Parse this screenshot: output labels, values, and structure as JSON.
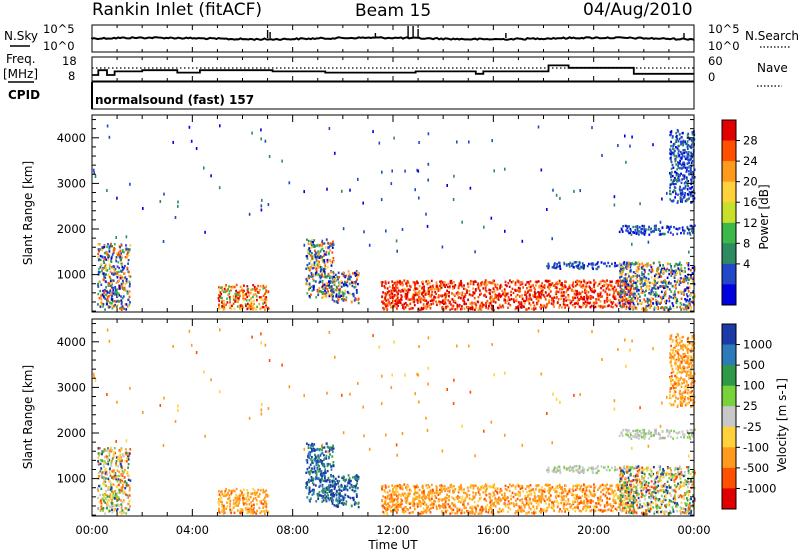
{
  "header": {
    "title": "Rankin Inlet (fitACF)",
    "beam": "Beam 15",
    "date": "04/Aug/2010"
  },
  "strips": {
    "nsky_label": "N.Sky",
    "nsky_ticks": [
      "10^5",
      "10^0"
    ],
    "nsearch_label": "N.Search",
    "nsearch_ticks": [
      "10^5",
      "10^0"
    ],
    "freq_label": "Freq.",
    "freq_unit": "[MHz]",
    "freq_ticks": [
      "18",
      "8"
    ],
    "nave_label": "Nave",
    "nave_ticks": [
      "60",
      "0"
    ],
    "cpid_label": "CPID",
    "cpid_text": "normalsound (fast) 157",
    "freq_steps": [
      {
        "t": 0.0,
        "f": 10.5
      },
      {
        "t": 0.25,
        "f": 12.5
      },
      {
        "t": 0.6,
        "f": 10.5
      },
      {
        "t": 0.9,
        "f": 12.0
      },
      {
        "t": 2.0,
        "f": 12.5
      },
      {
        "t": 3.4,
        "f": 11.5
      },
      {
        "t": 4.3,
        "f": 12.5
      },
      {
        "t": 7.2,
        "f": 12.0
      },
      {
        "t": 9.3,
        "f": 11.5
      },
      {
        "t": 12.9,
        "f": 12.0
      },
      {
        "t": 15.3,
        "f": 11.0
      },
      {
        "t": 15.6,
        "f": 12.0
      },
      {
        "t": 18.2,
        "f": 14.5
      },
      {
        "t": 19.0,
        "f": 13.5
      },
      {
        "t": 21.6,
        "f": 11.0
      },
      {
        "t": 24.0,
        "f": 11.0
      }
    ]
  },
  "chart_data": [
    {
      "type": "heatmap",
      "name": "power",
      "ylabel": "Slant Range [km]",
      "xlim": [
        0,
        24
      ],
      "ylim": [
        180,
        4500
      ],
      "yticks": [
        1000,
        2000,
        3000,
        4000
      ],
      "colorbar_label": "Power [dB]",
      "colorbar_ticks": [
        "28",
        "24",
        "20",
        "16",
        "12",
        "8",
        "4"
      ],
      "colorbar_colors": [
        "#e00000",
        "#ff5000",
        "#ff9a1e",
        "#ffd23c",
        "#c8e02a",
        "#3cb84a",
        "#2e8a60",
        "#2048c8",
        "#0000e0"
      ],
      "scatter_regions": [
        {
          "t0": 0.2,
          "t1": 1.5,
          "r0": 250,
          "r1": 1700,
          "c": "power_mixed"
        },
        {
          "t0": 5.0,
          "t1": 7.0,
          "r0": 250,
          "r1": 800,
          "c": "power_mid"
        },
        {
          "t0": 8.5,
          "t1": 9.6,
          "r0": 500,
          "r1": 1800,
          "c": "power_mixed"
        },
        {
          "t0": 9.5,
          "t1": 10.6,
          "r0": 400,
          "r1": 1100,
          "c": "power_mixed"
        },
        {
          "t0": 11.5,
          "t1": 18.0,
          "r0": 250,
          "r1": 900,
          "c": "power_strong"
        },
        {
          "t0": 18.0,
          "t1": 21.5,
          "r0": 300,
          "r1": 900,
          "c": "power_strong"
        },
        {
          "t0": 18.0,
          "t1": 21.5,
          "r0": 1150,
          "r1": 1300,
          "c": "power_weak"
        },
        {
          "t0": 21.0,
          "t1": 24.0,
          "r0": 250,
          "r1": 1300,
          "c": "power_mixed"
        },
        {
          "t0": 21.0,
          "t1": 24.0,
          "r0": 1900,
          "r1": 2100,
          "c": "power_weak"
        },
        {
          "t0": 23.0,
          "t1": 24.0,
          "r0": 2600,
          "r1": 4200,
          "c": "power_weak"
        }
      ]
    },
    {
      "type": "heatmap",
      "name": "velocity",
      "ylabel": "Slant Range [km]",
      "xlabel": "Time UT",
      "xlim": [
        0,
        24
      ],
      "ylim": [
        180,
        4500
      ],
      "xticks": [
        "00:00",
        "04:00",
        "08:00",
        "12:00",
        "16:00",
        "20:00",
        "00:00"
      ],
      "yticks": [
        1000,
        2000,
        3000,
        4000
      ],
      "colorbar_label": "Velocity [m s-1]",
      "colorbar_ticks": [
        "1000",
        "500",
        "100",
        "25",
        "-25",
        "-100",
        "-500",
        "-1000"
      ],
      "colorbar_colors": [
        "#1a3aa8",
        "#2c7bb8",
        "#2e9a48",
        "#78d23c",
        "#c8c8c8",
        "#ffd23c",
        "#ff9a1e",
        "#ff5000",
        "#e00000"
      ],
      "scatter_regions": [
        {
          "t0": 0.2,
          "t1": 1.5,
          "r0": 250,
          "r1": 1700,
          "c": "vel_mixed"
        },
        {
          "t0": 5.0,
          "t1": 7.0,
          "r0": 250,
          "r1": 800,
          "c": "vel_neg"
        },
        {
          "t0": 8.5,
          "t1": 9.6,
          "r0": 500,
          "r1": 1800,
          "c": "vel_pos"
        },
        {
          "t0": 9.5,
          "t1": 10.6,
          "r0": 400,
          "r1": 1100,
          "c": "vel_pos"
        },
        {
          "t0": 11.5,
          "t1": 18.0,
          "r0": 250,
          "r1": 900,
          "c": "vel_neg"
        },
        {
          "t0": 18.0,
          "t1": 21.5,
          "r0": 300,
          "r1": 900,
          "c": "vel_neg"
        },
        {
          "t0": 18.0,
          "t1": 21.5,
          "r0": 1150,
          "r1": 1300,
          "c": "vel_zero"
        },
        {
          "t0": 21.0,
          "t1": 24.0,
          "r0": 250,
          "r1": 1300,
          "c": "vel_mixed"
        },
        {
          "t0": 21.0,
          "t1": 24.0,
          "r0": 1900,
          "r1": 2100,
          "c": "vel_zero"
        },
        {
          "t0": 23.0,
          "t1": 24.0,
          "r0": 2600,
          "r1": 4200,
          "c": "vel_neg"
        }
      ]
    }
  ]
}
